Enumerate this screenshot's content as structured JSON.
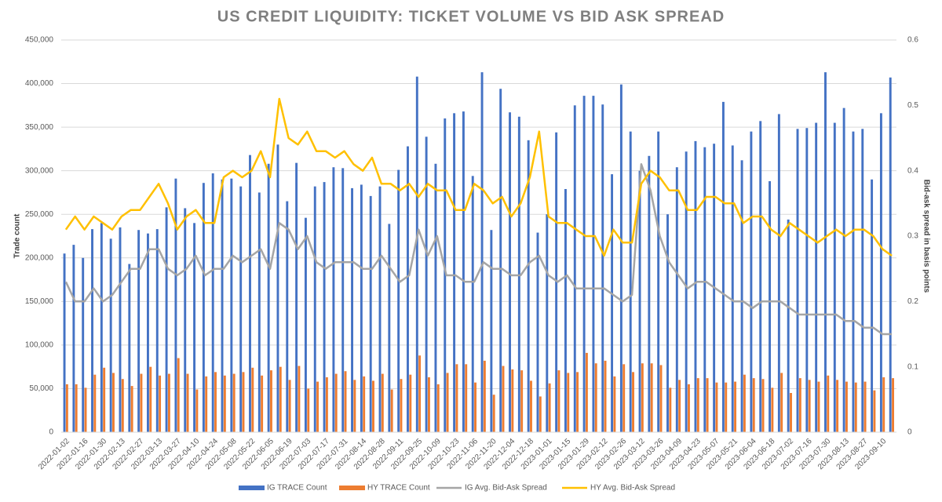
{
  "chart_data": {
    "type": "bar-line",
    "title": "US CREDIT LIQUIDITY:  TICKET VOLUME VS BID ASK SPREAD",
    "ylabel": "Trade count",
    "y2label": "Bid-ask spread in basis points",
    "categories": [
      "2022-01-02",
      null,
      "2022-01-16",
      null,
      "2022-01-30",
      null,
      "2022-02-13",
      null,
      "2022-02-27",
      null,
      "2022-03-13",
      null,
      "2022-03-27",
      null,
      "2022-04-10",
      null,
      "2022-04-24",
      null,
      "2022-05-08",
      null,
      "2022-05-22",
      null,
      "2022-06-05",
      null,
      "2022-06-19",
      null,
      "2022-07-03",
      null,
      "2022-07-17",
      null,
      "2022-07-31",
      null,
      "2022-08-14",
      null,
      "2022-08-28",
      null,
      "2022-09-11",
      null,
      "2022-09-25",
      null,
      "2022-10-09",
      null,
      "2022-10-23",
      null,
      "2022-11-06",
      null,
      "2022-11-20",
      null,
      "2022-12-04",
      null,
      "2022-12-18",
      null,
      "2023-01-01",
      null,
      "2023-01-15",
      null,
      "2023-01-29",
      null,
      "2023-02-12",
      null,
      "2023-02-26",
      null,
      "2023-03-12",
      null,
      "2023-03-26",
      null,
      "2023-04-09",
      null,
      "2023-04-23",
      null,
      "2023-05-07",
      null,
      "2023-05-21",
      null,
      "2023-06-04",
      null,
      "2023-06-18",
      null,
      "2023-07-02",
      null,
      "2023-07-16",
      null,
      "2023-07-30",
      null,
      "2023-08-13",
      null,
      "2023-08-27",
      null,
      "2023-09-10",
      null
    ],
    "series": [
      {
        "name": "IG TRACE Count",
        "kind": "bar",
        "color": "#4472c4",
        "values": [
          205000,
          215000,
          200000,
          233000,
          240000,
          222000,
          235000,
          193000,
          232000,
          228000,
          233000,
          258000,
          291000,
          257000,
          240000,
          286000,
          297000,
          290000,
          291000,
          282000,
          318000,
          275000,
          308000,
          330000,
          265000,
          309000,
          246000,
          282000,
          287000,
          304000,
          303000,
          280000,
          284000,
          271000,
          282000,
          239000,
          301000,
          328000,
          408000,
          339000,
          308000,
          360000,
          366000,
          368000,
          294000,
          413000,
          232000,
          394000,
          367000,
          362000,
          335000,
          229000,
          250000,
          344000,
          279000,
          375000,
          386000,
          386000,
          376000,
          296000,
          399000,
          345000,
          300000,
          317000,
          345000,
          250000,
          304000,
          322000,
          334000,
          327000,
          331000,
          379000,
          329000,
          312000,
          345000,
          357000,
          288000,
          365000,
          244000,
          348000,
          349000,
          355000,
          413000,
          355000,
          372000,
          345000,
          348000,
          290000,
          366000,
          407000
        ]
      },
      {
        "name": "HY TRACE Count",
        "kind": "bar",
        "color": "#ed7d31",
        "values": [
          55000,
          55000,
          51000,
          66000,
          74000,
          68000,
          61000,
          53000,
          67000,
          75000,
          65000,
          67000,
          85000,
          67000,
          49000,
          64000,
          69000,
          65000,
          67000,
          69000,
          74000,
          65000,
          71000,
          75000,
          60000,
          76000,
          50000,
          58000,
          63000,
          67000,
          70000,
          60000,
          64000,
          59000,
          67000,
          49000,
          61000,
          66000,
          88000,
          63000,
          55000,
          68000,
          78000,
          78000,
          57000,
          82000,
          43000,
          76000,
          72000,
          71000,
          59000,
          41000,
          56000,
          71000,
          68000,
          69000,
          91000,
          79000,
          82000,
          64000,
          78000,
          69000,
          79000,
          79000,
          77000,
          51000,
          60000,
          55000,
          62000,
          62000,
          57000,
          57000,
          58000,
          66000,
          62000,
          61000,
          51000,
          68000,
          45000,
          62000,
          60000,
          58000,
          65000,
          60000,
          58000,
          57000,
          58000,
          48000,
          63000,
          62000
        ]
      },
      {
        "name": "IG Avg. Bid-Ask Spread",
        "kind": "line",
        "axis": "y2",
        "color": "#a5a5a5",
        "values": [
          0.23,
          0.2,
          0.2,
          0.22,
          0.2,
          0.21,
          0.23,
          0.25,
          0.25,
          0.28,
          0.28,
          0.25,
          0.24,
          0.25,
          0.27,
          0.24,
          0.25,
          0.25,
          0.27,
          0.26,
          0.27,
          0.28,
          0.25,
          0.32,
          0.31,
          0.28,
          0.3,
          0.26,
          0.25,
          0.26,
          0.26,
          0.26,
          0.25,
          0.25,
          0.27,
          0.25,
          0.23,
          0.24,
          0.31,
          0.27,
          0.3,
          0.24,
          0.24,
          0.23,
          0.23,
          0.26,
          0.25,
          0.25,
          0.24,
          0.24,
          0.26,
          0.27,
          0.24,
          0.23,
          0.24,
          0.22,
          0.22,
          0.22,
          0.22,
          0.21,
          0.2,
          0.21,
          0.41,
          0.37,
          0.3,
          0.26,
          0.24,
          0.22,
          0.23,
          0.23,
          0.22,
          0.21,
          0.2,
          0.2,
          0.19,
          0.2,
          0.2,
          0.2,
          0.19,
          0.18,
          0.18,
          0.18,
          0.18,
          0.18,
          0.17,
          0.17,
          0.16,
          0.16,
          0.15,
          0.15
        ]
      },
      {
        "name": "HY Avg. Bid-Ask Spread",
        "kind": "line",
        "axis": "y2",
        "color": "#ffc000",
        "values": [
          0.31,
          0.33,
          0.31,
          0.33,
          0.32,
          0.31,
          0.33,
          0.34,
          0.34,
          0.36,
          0.38,
          0.35,
          0.31,
          0.33,
          0.34,
          0.32,
          0.32,
          0.39,
          0.4,
          0.39,
          0.4,
          0.43,
          0.39,
          0.51,
          0.45,
          0.44,
          0.46,
          0.43,
          0.43,
          0.42,
          0.43,
          0.41,
          0.4,
          0.42,
          0.38,
          0.38,
          0.37,
          0.38,
          0.36,
          0.38,
          0.37,
          0.37,
          0.34,
          0.34,
          0.38,
          0.37,
          0.35,
          0.36,
          0.33,
          0.35,
          0.39,
          0.46,
          0.33,
          0.32,
          0.32,
          0.31,
          0.3,
          0.3,
          0.27,
          0.31,
          0.29,
          0.29,
          0.38,
          0.4,
          0.39,
          0.37,
          0.37,
          0.34,
          0.34,
          0.36,
          0.36,
          0.35,
          0.35,
          0.32,
          0.33,
          0.33,
          0.31,
          0.3,
          0.32,
          0.31,
          0.3,
          0.29,
          0.3,
          0.31,
          0.3,
          0.31,
          0.31,
          0.3,
          0.28,
          0.27
        ]
      }
    ],
    "ylim": [
      0,
      450000
    ],
    "yticks": [
      0,
      {
        "value": 50000,
        "label": "50,000"
      },
      {
        "value": 100000,
        "label": "100,000"
      },
      {
        "value": 150000,
        "label": "150,000"
      },
      {
        "value": 200000,
        "label": "200,000"
      },
      {
        "value": 250000,
        "label": "250,000"
      },
      {
        "value": 300000,
        "label": "300,000"
      },
      {
        "value": 350000,
        "label": "350,000"
      },
      {
        "value": 400000,
        "label": "400,000"
      },
      {
        "value": 450000,
        "label": "450,000"
      }
    ],
    "y2lim": [
      0,
      0.6
    ],
    "y2ticks": [
      0,
      0.1,
      0.2,
      0.3,
      0.4,
      0.5,
      0.6
    ],
    "grid": true,
    "legend": "bottom"
  }
}
